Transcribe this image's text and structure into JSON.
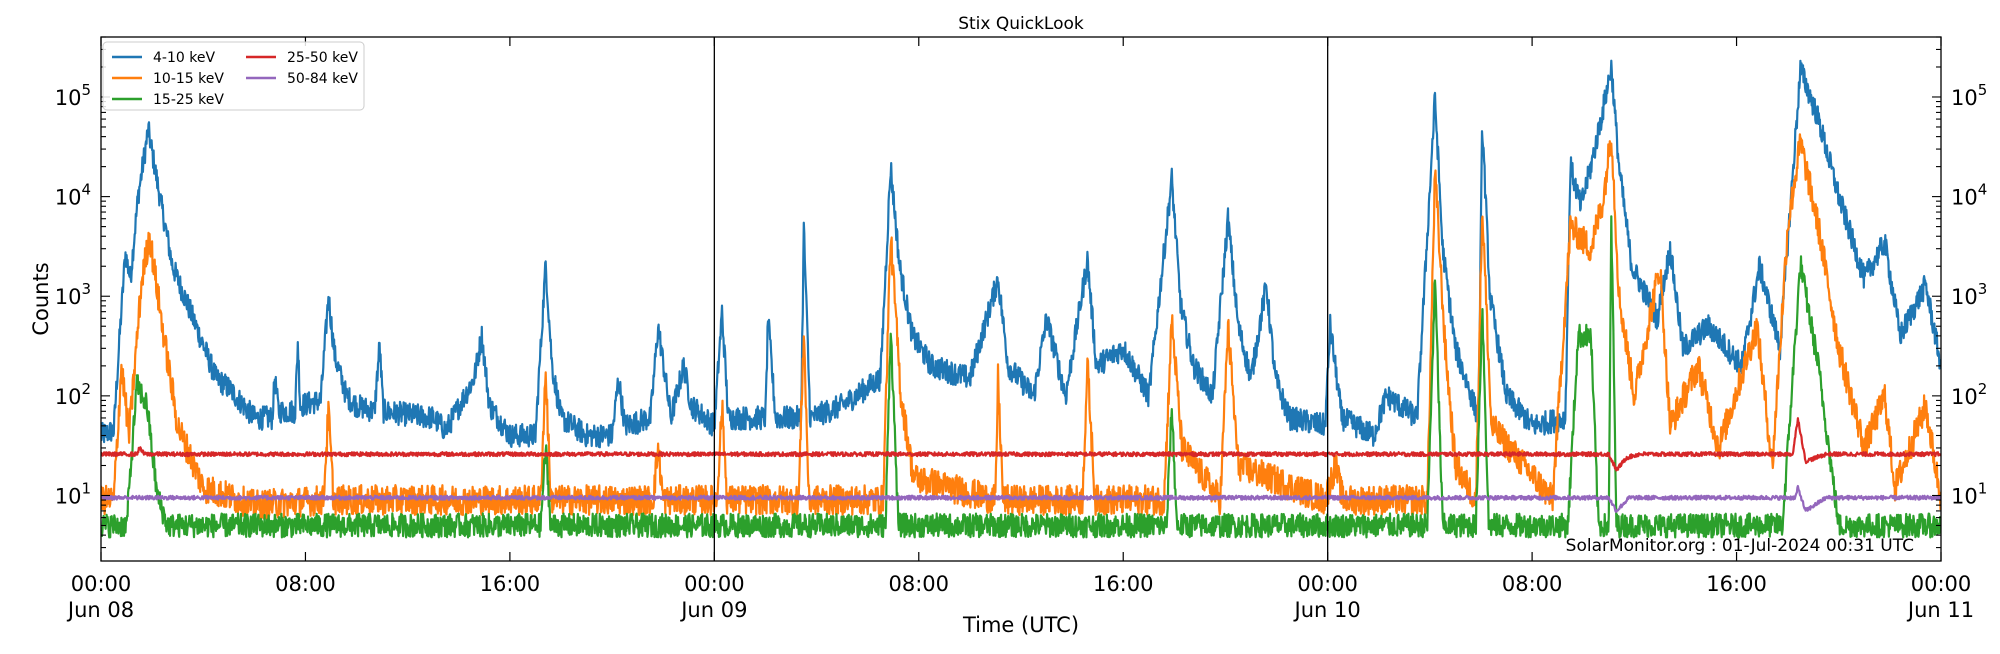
{
  "chart_data": {
    "type": "line",
    "title": "Stix QuickLook",
    "xlabel": "Time (UTC)",
    "ylabel": "Counts",
    "yscale": "log",
    "xlim_hours": [
      0,
      72
    ],
    "ylim": [
      2.2,
      400000
    ],
    "x_ticks": [
      {
        "hour": 0,
        "label": "00:00",
        "sub": "Jun 08"
      },
      {
        "hour": 8,
        "label": "08:00",
        "sub": ""
      },
      {
        "hour": 16,
        "label": "16:00",
        "sub": ""
      },
      {
        "hour": 24,
        "label": "00:00",
        "sub": "Jun 09"
      },
      {
        "hour": 32,
        "label": "08:00",
        "sub": ""
      },
      {
        "hour": 40,
        "label": "16:00",
        "sub": ""
      },
      {
        "hour": 48,
        "label": "00:00",
        "sub": "Jun 10"
      },
      {
        "hour": 56,
        "label": "08:00",
        "sub": ""
      },
      {
        "hour": 64,
        "label": "16:00",
        "sub": ""
      },
      {
        "hour": 72,
        "label": "00:00",
        "sub": "Jun 11"
      }
    ],
    "y_ticks": [
      {
        "value": 10,
        "base": "10",
        "exp": "1"
      },
      {
        "value": 100,
        "base": "10",
        "exp": "2"
      },
      {
        "value": 1000,
        "base": "10",
        "exp": "3"
      },
      {
        "value": 10000,
        "base": "10",
        "exp": "4"
      },
      {
        "value": 100000,
        "base": "10",
        "exp": "5"
      }
    ],
    "day_boundaries_hours": [
      24,
      48
    ],
    "legend_position": "top-left",
    "annotation": "SolarMonitor.org : 01-Jul-2024 00:31 UTC",
    "series": [
      {
        "name": "4-10 keV",
        "color": "#1f77b4",
        "noise": 0.12,
        "points": [
          [
            0,
            40
          ],
          [
            0.5,
            45
          ],
          [
            0.7,
            300
          ],
          [
            0.95,
            2700
          ],
          [
            1.15,
            1500
          ],
          [
            1.45,
            10000
          ],
          [
            1.85,
            47000
          ],
          [
            2.3,
            10000
          ],
          [
            2.8,
            2000
          ],
          [
            3.5,
            700
          ],
          [
            4.5,
            150
          ],
          [
            5,
            120
          ],
          [
            6,
            60
          ],
          [
            6.7,
            60
          ],
          [
            6.8,
            150
          ],
          [
            6.95,
            70
          ],
          [
            7.6,
            70
          ],
          [
            7.7,
            350
          ],
          [
            7.8,
            80
          ],
          [
            8.6,
            90
          ],
          [
            8.9,
            1000
          ],
          [
            9.15,
            250
          ],
          [
            9.6,
            100
          ],
          [
            10,
            80
          ],
          [
            10.7,
            70
          ],
          [
            10.9,
            320
          ],
          [
            11.05,
            70
          ],
          [
            13,
            60
          ],
          [
            13.5,
            45
          ],
          [
            14.6,
            150
          ],
          [
            14.9,
            400
          ],
          [
            15.2,
            80
          ],
          [
            16,
            40
          ],
          [
            17,
            40
          ],
          [
            17.4,
            2100
          ],
          [
            17.65,
            200
          ],
          [
            18,
            60
          ],
          [
            19,
            40
          ],
          [
            20,
            40
          ],
          [
            20.25,
            150
          ],
          [
            20.5,
            50
          ],
          [
            21.5,
            60
          ],
          [
            21.8,
            500
          ],
          [
            22.3,
            60
          ],
          [
            22.8,
            200
          ],
          [
            23.1,
            80
          ],
          [
            24,
            50
          ],
          [
            24.3,
            700
          ],
          [
            24.55,
            60
          ],
          [
            26,
            60
          ],
          [
            26.1,
            600
          ],
          [
            26.4,
            60
          ],
          [
            27.4,
            60
          ],
          [
            27.5,
            5000
          ],
          [
            27.75,
            60
          ],
          [
            29,
            80
          ],
          [
            30.5,
            150
          ],
          [
            30.9,
            20000
          ],
          [
            31.25,
            2000
          ],
          [
            31.75,
            400
          ],
          [
            32.5,
            200
          ],
          [
            34,
            150
          ],
          [
            35.1,
            1500
          ],
          [
            35.5,
            200
          ],
          [
            36.5,
            100
          ],
          [
            37,
            600
          ],
          [
            37.75,
            100
          ],
          [
            38.6,
            2300
          ],
          [
            38.95,
            200
          ],
          [
            40,
            300
          ],
          [
            41,
            100
          ],
          [
            41.9,
            15000
          ],
          [
            42.25,
            800
          ],
          [
            42.75,
            200
          ],
          [
            43.5,
            100
          ],
          [
            44.1,
            6000
          ],
          [
            44.5,
            500
          ],
          [
            45,
            150
          ],
          [
            45.6,
            1300
          ],
          [
            45.95,
            150
          ],
          [
            46.5,
            60
          ],
          [
            47.9,
            50
          ],
          [
            48.1,
            500
          ],
          [
            48.55,
            60
          ],
          [
            49.8,
            40
          ],
          [
            50.3,
            100
          ],
          [
            51.5,
            60
          ],
          [
            52.2,
            100000
          ],
          [
            52.5,
            3000
          ],
          [
            53,
            300
          ],
          [
            53.9,
            60
          ],
          [
            54.05,
            55000
          ],
          [
            54.35,
            1000
          ],
          [
            55,
            100
          ],
          [
            56,
            50
          ],
          [
            57.3,
            60
          ],
          [
            57.5,
            20000
          ],
          [
            57.9,
            8000
          ],
          [
            58.3,
            20000
          ],
          [
            58.7,
            60000
          ],
          [
            59.1,
            200000
          ],
          [
            59.4,
            20000
          ],
          [
            59.9,
            2000
          ],
          [
            60.9,
            600
          ],
          [
            61.4,
            3000
          ],
          [
            61.9,
            300
          ],
          [
            62.9,
            500
          ],
          [
            64.2,
            200
          ],
          [
            64.9,
            2000
          ],
          [
            65.7,
            300
          ],
          [
            66.5,
            190000
          ],
          [
            67.2,
            60000
          ],
          [
            68,
            10000
          ],
          [
            69,
            1500
          ],
          [
            69.8,
            3500
          ],
          [
            70.4,
            400
          ],
          [
            71.4,
            1300
          ],
          [
            72,
            200
          ]
        ]
      },
      {
        "name": "10-15 keV",
        "color": "#ff7f0e",
        "noise": 0.15,
        "points": [
          [
            0,
            9
          ],
          [
            0.5,
            9
          ],
          [
            0.8,
            200
          ],
          [
            1.1,
            40
          ],
          [
            1.6,
            1500
          ],
          [
            1.9,
            4000
          ],
          [
            2.4,
            500
          ],
          [
            3,
            50
          ],
          [
            4,
            12
          ],
          [
            6,
            8
          ],
          [
            8.7,
            9
          ],
          [
            8.9,
            70
          ],
          [
            9.1,
            9
          ],
          [
            17.2,
            9
          ],
          [
            17.4,
            180
          ],
          [
            17.6,
            9
          ],
          [
            21.6,
            9
          ],
          [
            21.8,
            30
          ],
          [
            22,
            9
          ],
          [
            24.1,
            9
          ],
          [
            24.3,
            80
          ],
          [
            24.5,
            9
          ],
          [
            27.3,
            9
          ],
          [
            27.5,
            450
          ],
          [
            27.7,
            9
          ],
          [
            30.6,
            9
          ],
          [
            30.9,
            4000
          ],
          [
            31.3,
            100
          ],
          [
            31.8,
            15
          ],
          [
            35,
            9
          ],
          [
            35.1,
            150
          ],
          [
            35.3,
            9
          ],
          [
            38.4,
            9
          ],
          [
            38.6,
            200
          ],
          [
            38.9,
            9
          ],
          [
            41.6,
            9
          ],
          [
            41.9,
            600
          ],
          [
            42.3,
            30
          ],
          [
            43.8,
            9
          ],
          [
            44.1,
            500
          ],
          [
            44.5,
            20
          ],
          [
            47.9,
            9
          ],
          [
            48.3,
            20
          ],
          [
            48.6,
            9
          ],
          [
            51.9,
            9
          ],
          [
            52.2,
            18000
          ],
          [
            52.6,
            300
          ],
          [
            53,
            20
          ],
          [
            53.8,
            9
          ],
          [
            54.05,
            8000
          ],
          [
            54.4,
            50
          ],
          [
            56.8,
            9
          ],
          [
            57.5,
            5000
          ],
          [
            58.3,
            3000
          ],
          [
            58.8,
            10000
          ],
          [
            59.1,
            45000
          ],
          [
            59.4,
            1000
          ],
          [
            60,
            100
          ],
          [
            61,
            2000
          ],
          [
            61.4,
            50
          ],
          [
            62.5,
            200
          ],
          [
            63.3,
            30
          ],
          [
            64.8,
            500
          ],
          [
            65.4,
            20
          ],
          [
            66,
            5000
          ],
          [
            66.5,
            35000
          ],
          [
            67.2,
            5000
          ],
          [
            68,
            300
          ],
          [
            69,
            30
          ],
          [
            69.8,
            100
          ],
          [
            70.2,
            12
          ],
          [
            71.4,
            80
          ],
          [
            72,
            9
          ]
        ]
      },
      {
        "name": "15-25 keV",
        "color": "#2ca02c",
        "noise": 0.12,
        "points": [
          [
            0,
            5
          ],
          [
            1,
            5
          ],
          [
            1.4,
            130
          ],
          [
            1.8,
            80
          ],
          [
            2.2,
            10
          ],
          [
            2.6,
            5
          ],
          [
            17.2,
            5
          ],
          [
            17.4,
            30
          ],
          [
            17.6,
            5
          ],
          [
            30.7,
            5
          ],
          [
            30.9,
            500
          ],
          [
            31.2,
            5
          ],
          [
            41.7,
            5
          ],
          [
            41.9,
            80
          ],
          [
            42.1,
            5
          ],
          [
            48.3,
            5
          ],
          [
            51.9,
            5
          ],
          [
            52.2,
            1500
          ],
          [
            52.5,
            5
          ],
          [
            53.8,
            5
          ],
          [
            54.05,
            800
          ],
          [
            54.3,
            5
          ],
          [
            57.4,
            5
          ],
          [
            57.8,
            400
          ],
          [
            58.3,
            400
          ],
          [
            58.6,
            5
          ],
          [
            59.0,
            5
          ],
          [
            59.1,
            6000
          ],
          [
            59.3,
            5
          ],
          [
            65.8,
            5
          ],
          [
            66.5,
            2100
          ],
          [
            67.2,
            200
          ],
          [
            68,
            5
          ],
          [
            72,
            5
          ]
        ]
      },
      {
        "name": "25-50 keV",
        "color": "#d62728",
        "noise": 0.02,
        "points": [
          [
            0,
            26
          ],
          [
            1.4,
            26
          ],
          [
            1.5,
            30
          ],
          [
            1.7,
            26
          ],
          [
            59.0,
            26
          ],
          [
            59.3,
            18
          ],
          [
            59.7,
            24
          ],
          [
            60.2,
            26
          ],
          [
            66.2,
            26
          ],
          [
            66.4,
            60
          ],
          [
            66.7,
            22
          ],
          [
            67.5,
            26
          ],
          [
            72,
            26
          ]
        ]
      },
      {
        "name": "50-84 keV",
        "color": "#9467bd",
        "noise": 0.02,
        "points": [
          [
            0,
            9.5
          ],
          [
            59.0,
            9.5
          ],
          [
            59.3,
            7
          ],
          [
            59.8,
            9.5
          ],
          [
            66.3,
            9.5
          ],
          [
            66.4,
            12
          ],
          [
            66.7,
            7
          ],
          [
            67.5,
            9.5
          ],
          [
            72,
            9.5
          ]
        ]
      }
    ]
  }
}
